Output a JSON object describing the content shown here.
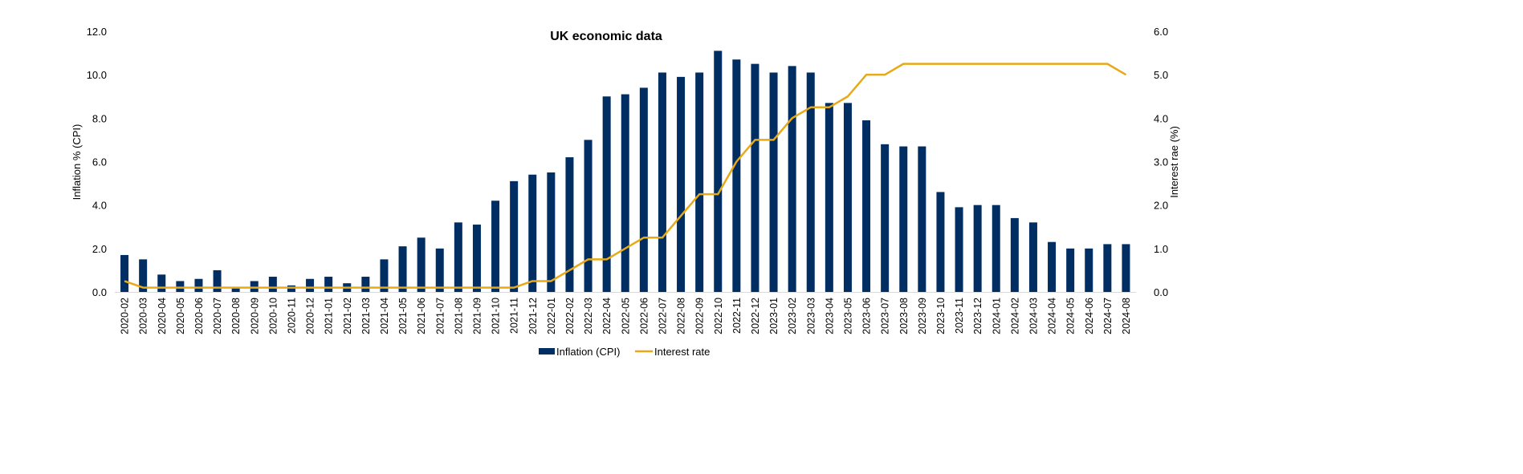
{
  "chart_data": {
    "type": "bar+line",
    "title": "UK economic data",
    "ylabel": "Inflation % (CPI)",
    "y2label": "Interest rae (%)",
    "ylim": [
      0,
      12
    ],
    "y2lim": [
      0,
      6
    ],
    "yticks": [
      "0.0",
      "2.0",
      "4.0",
      "6.0",
      "8.0",
      "10.0",
      "12.0"
    ],
    "y2ticks": [
      "0.0",
      "1.0",
      "2.0",
      "3.0",
      "4.0",
      "5.0",
      "6.0"
    ],
    "grid": false,
    "legend_position": "bottom",
    "categories": [
      "2020-02",
      "2020-03",
      "2020-04",
      "2020-05",
      "2020-06",
      "2020-07",
      "2020-08",
      "2020-09",
      "2020-10",
      "2020-11",
      "2020-12",
      "2021-01",
      "2021-02",
      "2021-03",
      "2021-04",
      "2021-05",
      "2021-06",
      "2021-07",
      "2021-08",
      "2021-09",
      "2021-10",
      "2021-11",
      "2021-12",
      "2022-01",
      "2022-02",
      "2022-03",
      "2022-04",
      "2022-05",
      "2022-06",
      "2022-07",
      "2022-08",
      "2022-09",
      "2022-10",
      "2022-11",
      "2022-12",
      "2023-01",
      "2023-02",
      "2023-03",
      "2023-04",
      "2023-05",
      "2023-06",
      "2023-07",
      "2023-08",
      "2023-09",
      "2023-10",
      "2023-11",
      "2023-12",
      "2024-01",
      "2024-02",
      "2024-03",
      "2024-04",
      "2024-05",
      "2024-06",
      "2024-07",
      "2024-08"
    ],
    "series": [
      {
        "name": "Inflation (CPI)",
        "type": "bar",
        "axis": "left",
        "color": "#002D62",
        "values": [
          1.7,
          1.5,
          0.8,
          0.5,
          0.6,
          1.0,
          0.2,
          0.5,
          0.7,
          0.3,
          0.6,
          0.7,
          0.4,
          0.7,
          1.5,
          2.1,
          2.5,
          2.0,
          3.2,
          3.1,
          4.2,
          5.1,
          5.4,
          5.5,
          6.2,
          7.0,
          9.0,
          9.1,
          9.4,
          10.1,
          9.9,
          10.1,
          11.1,
          10.7,
          10.5,
          10.1,
          10.4,
          10.1,
          8.7,
          8.7,
          7.9,
          6.8,
          6.7,
          6.7,
          4.6,
          3.9,
          4.0,
          4.0,
          3.4,
          3.2,
          2.3,
          2.0,
          2.0,
          2.2,
          2.2
        ]
      },
      {
        "name": "Interest rate",
        "type": "line",
        "axis": "right",
        "color": "#E8A917",
        "values": [
          0.25,
          0.1,
          0.1,
          0.1,
          0.1,
          0.1,
          0.1,
          0.1,
          0.1,
          0.1,
          0.1,
          0.1,
          0.1,
          0.1,
          0.1,
          0.1,
          0.1,
          0.1,
          0.1,
          0.1,
          0.1,
          0.1,
          0.25,
          0.25,
          0.5,
          0.75,
          0.75,
          1.0,
          1.25,
          1.25,
          1.75,
          2.25,
          2.25,
          3.0,
          3.5,
          3.5,
          4.0,
          4.25,
          4.25,
          4.5,
          5.0,
          5.0,
          5.25,
          5.25,
          5.25,
          5.25,
          5.25,
          5.25,
          5.25,
          5.25,
          5.25,
          5.25,
          5.25,
          5.25,
          5.0
        ]
      }
    ]
  }
}
